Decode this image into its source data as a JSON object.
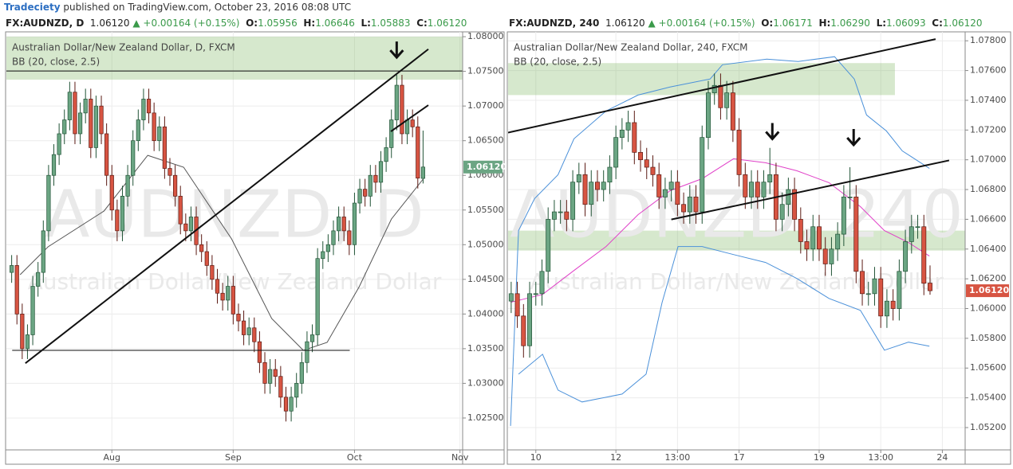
{
  "top": {
    "author": "Tradeciety",
    "text": "published on TradingView.com, October 23, 2016 08:08 UTC"
  },
  "chart_data": [
    {
      "type": "candlestick",
      "header": {
        "symbol": "FX:AUDNZD, D",
        "last": "1.06120",
        "change": "▲ +0.00164 (+0.15%)",
        "ohlc": [
          {
            "label": "O:",
            "value": "1.05956"
          },
          {
            "label": "H:",
            "value": "1.06646"
          },
          {
            "label": "L:",
            "value": "1.05883"
          },
          {
            "label": "C:",
            "value": "1.06120"
          }
        ]
      },
      "legend": [
        "Australian Dollar/New Zealand Dollar, D, FXCM",
        "BB (20, close, 2.5)"
      ],
      "watermark": [
        "AUDNZD, D",
        "Australian Dollar/New Zealand Dollar"
      ],
      "price_label": "1.06120",
      "up_color": "#6ba583",
      "down_color": "#d75442",
      "xlim": [
        -1,
        85.5
      ],
      "ylim": [
        1.0204,
        1.0807
      ],
      "xticks": [
        {
          "value": 19,
          "label": "Aug"
        },
        {
          "value": 42,
          "label": "Sep"
        },
        {
          "value": 65,
          "label": "Oct"
        },
        {
          "value": 85,
          "label": "Nov"
        }
      ],
      "yticks": [
        {
          "value": 1.025,
          "label": "1.02500"
        },
        {
          "value": 1.03,
          "label": "1.03000"
        },
        {
          "value": 1.035,
          "label": "1.03500"
        },
        {
          "value": 1.04,
          "label": "1.04000"
        },
        {
          "value": 1.045,
          "label": "1.04500"
        },
        {
          "value": 1.05,
          "label": "1.05000"
        },
        {
          "value": 1.055,
          "label": "1.05500"
        },
        {
          "value": 1.06,
          "label": "1.06000"
        },
        {
          "value": 1.065,
          "label": "1.06500"
        },
        {
          "value": 1.07,
          "label": "1.07000"
        },
        {
          "value": 1.075,
          "label": "1.07500"
        },
        {
          "value": 1.08,
          "label": "1.08000"
        }
      ],
      "grid": true,
      "open": [
        1.046,
        1.047,
        1.04,
        1.035,
        1.037,
        1.044,
        1.046,
        1.052,
        1.06,
        1.063,
        1.066,
        1.068,
        1.072,
        1.066,
        1.069,
        1.071,
        1.064,
        1.07,
        1.066,
        1.06,
        1.055,
        1.052,
        1.057,
        1.06,
        1.065,
        1.068,
        1.071,
        1.069,
        1.065,
        1.067,
        1.061,
        1.06,
        1.057,
        1.053,
        1.052,
        1.054,
        1.05,
        1.049,
        1.047,
        1.045,
        1.043,
        1.042,
        1.044,
        1.04,
        1.039,
        1.037,
        1.038,
        1.036,
        1.033,
        1.03,
        1.032,
        1.031,
        1.028,
        1.026,
        1.028,
        1.03,
        1.033,
        1.036,
        1.037,
        1.048,
        1.049,
        1.05,
        1.052,
        1.054,
        1.052,
        1.05,
        1.056,
        1.058,
        1.057,
        1.06,
        1.059,
        1.062,
        1.064,
        1.068,
        1.073,
        1.066,
        1.068,
        1.067,
        1.05956
      ],
      "high": [
        1.0485,
        1.0485,
        1.0415,
        1.0385,
        1.0455,
        1.0475,
        1.0535,
        1.0615,
        1.0645,
        1.0675,
        1.0695,
        1.0735,
        1.0735,
        1.0705,
        1.0725,
        1.0725,
        1.0715,
        1.0715,
        1.0675,
        1.0615,
        1.0565,
        1.0585,
        1.0615,
        1.0665,
        1.0695,
        1.0725,
        1.0725,
        1.0705,
        1.0685,
        1.0685,
        1.0625,
        1.0615,
        1.0585,
        1.0545,
        1.0555,
        1.0555,
        1.0515,
        1.0505,
        1.0485,
        1.0465,
        1.0445,
        1.0455,
        1.0455,
        1.0415,
        1.0405,
        1.0395,
        1.0395,
        1.0375,
        1.0345,
        1.0335,
        1.0335,
        1.0325,
        1.0295,
        1.0295,
        1.0315,
        1.0345,
        1.0375,
        1.0385,
        1.0495,
        1.0505,
        1.0515,
        1.0535,
        1.0555,
        1.0555,
        1.0535,
        1.0575,
        1.0595,
        1.0595,
        1.0615,
        1.0615,
        1.0635,
        1.0655,
        1.0695,
        1.0745,
        1.0745,
        1.0695,
        1.0695,
        1.0685,
        1.06646
      ],
      "low": [
        1.0445,
        1.0385,
        1.0335,
        1.0335,
        1.0355,
        1.0425,
        1.0445,
        1.0505,
        1.0585,
        1.0615,
        1.0645,
        1.0665,
        1.0645,
        1.0645,
        1.0675,
        1.0625,
        1.0625,
        1.0645,
        1.0585,
        1.0535,
        1.0505,
        1.0505,
        1.0555,
        1.0585,
        1.0635,
        1.0665,
        1.0675,
        1.0635,
        1.0635,
        1.0595,
        1.0585,
        1.0555,
        1.0515,
        1.0505,
        1.0505,
        1.0485,
        1.0475,
        1.0455,
        1.0435,
        1.0415,
        1.0405,
        1.0405,
        1.0385,
        1.0375,
        1.0355,
        1.0355,
        1.0345,
        1.0315,
        1.0285,
        1.0285,
        1.0295,
        1.0265,
        1.0245,
        1.0245,
        1.0265,
        1.0285,
        1.0315,
        1.0345,
        1.0355,
        1.0465,
        1.0475,
        1.0485,
        1.0505,
        1.0505,
        1.0485,
        1.0485,
        1.0545,
        1.0555,
        1.0555,
        1.0575,
        1.0575,
        1.0605,
        1.0625,
        1.0665,
        1.0645,
        1.0645,
        1.0655,
        1.0581,
        1.05883
      ],
      "close": [
        1.047,
        1.04,
        1.035,
        1.037,
        1.044,
        1.046,
        1.052,
        1.06,
        1.063,
        1.066,
        1.068,
        1.072,
        1.066,
        1.069,
        1.071,
        1.064,
        1.07,
        1.066,
        1.06,
        1.055,
        1.052,
        1.057,
        1.06,
        1.065,
        1.068,
        1.071,
        1.069,
        1.065,
        1.067,
        1.061,
        1.06,
        1.057,
        1.053,
        1.052,
        1.054,
        1.05,
        1.049,
        1.047,
        1.045,
        1.043,
        1.042,
        1.044,
        1.04,
        1.039,
        1.037,
        1.038,
        1.036,
        1.033,
        1.03,
        1.032,
        1.031,
        1.028,
        1.026,
        1.028,
        1.03,
        1.033,
        1.036,
        1.037,
        1.048,
        1.049,
        1.05,
        1.052,
        1.054,
        1.052,
        1.05,
        1.056,
        1.058,
        1.057,
        1.06,
        1.059,
        1.062,
        1.064,
        1.068,
        1.073,
        1.066,
        1.068,
        1.067,
        1.0596,
        1.0612
      ],
      "bands": [
        {
          "color": "#555555",
          "x": [
            1.6,
            6.9,
            17.5,
            25.8,
            32.6,
            41.7,
            49.3,
            55.3,
            59.8,
            65.9,
            72,
            78
          ],
          "values": [
            1.04567,
            1.04969,
            1.05485,
            1.06289,
            1.06117,
            1.05083,
            1.03935,
            1.03476,
            1.03591,
            1.04394,
            1.0537,
            1.05945
          ]
        }
      ],
      "lines": [
        {
          "x": [
            2.6,
            79
          ],
          "y": [
            1.0329,
            1.0782
          ]
        },
        {
          "x": [
            71.9,
            79
          ],
          "y": [
            1.06634,
            1.07013
          ]
        },
        {
          "x": [
            -1,
            85.5
          ],
          "y": [
            1.07506,
            1.07506
          ]
        },
        {
          "x": [
            0.1,
            64.1
          ],
          "y": [
            1.03476,
            1.03476
          ]
        }
      ],
      "zones": [
        {
          "x": [
            -1,
            85.5
          ],
          "y": [
            1.0738,
            1.08
          ]
        }
      ],
      "arrows": [
        {
          "x": 73,
          "y": 1.07701
        }
      ]
    },
    {
      "type": "candlestick",
      "header": {
        "symbol": "FX:AUDNZD, 240",
        "last": "1.06120",
        "change": "▲ +0.00164 (+0.15%)",
        "ohlc": [
          {
            "label": "O:",
            "value": "1.06171"
          },
          {
            "label": "H:",
            "value": "1.06290"
          },
          {
            "label": "L:",
            "value": "1.06093"
          },
          {
            "label": "C:",
            "value": "1.06120"
          }
        ]
      },
      "legend": [
        "Australian Dollar/New Zealand Dollar, 240, FXCM",
        "BB (20, close, 2.5)"
      ],
      "watermark": [
        "AUDNZD, 240",
        "Australian Dollar/New Zealand Dollar"
      ],
      "price_label": "1.06120",
      "up_color": "#6ba583",
      "down_color": "#d75442",
      "xlim": [
        -0.5,
        73.7
      ],
      "ylim": [
        1.0505,
        1.0786
      ],
      "xticks": [
        {
          "value": 4,
          "label": "10"
        },
        {
          "value": 17,
          "label": "12"
        },
        {
          "value": 27,
          "label": "13:00"
        },
        {
          "value": 37,
          "label": "17"
        },
        {
          "value": 50,
          "label": "19"
        },
        {
          "value": 60,
          "label": "13:00"
        },
        {
          "value": 70,
          "label": "24"
        }
      ],
      "yticks": [
        {
          "value": 1.052,
          "label": "1.05200"
        },
        {
          "value": 1.054,
          "label": "1.05400"
        },
        {
          "value": 1.056,
          "label": "1.05600"
        },
        {
          "value": 1.058,
          "label": "1.05800"
        },
        {
          "value": 1.06,
          "label": "1.06000"
        },
        {
          "value": 1.062,
          "label": "1.06200"
        },
        {
          "value": 1.064,
          "label": "1.06400"
        },
        {
          "value": 1.066,
          "label": "1.06600"
        },
        {
          "value": 1.068,
          "label": "1.06800"
        },
        {
          "value": 1.07,
          "label": "1.07000"
        },
        {
          "value": 1.072,
          "label": "1.07200"
        },
        {
          "value": 1.074,
          "label": "1.07400"
        },
        {
          "value": 1.076,
          "label": "1.07600"
        },
        {
          "value": 1.078,
          "label": "1.07800"
        }
      ],
      "grid": true,
      "open": [
        1.0605,
        1.061,
        1.0595,
        1.0575,
        1.061,
        1.061,
        1.0625,
        1.066,
        1.0665,
        1.0665,
        1.066,
        1.0685,
        1.069,
        1.067,
        1.0685,
        1.068,
        1.0685,
        1.0695,
        1.0715,
        1.072,
        1.0725,
        1.0705,
        1.07,
        1.0695,
        1.069,
        1.0675,
        1.068,
        1.0685,
        1.067,
        1.0665,
        1.0675,
        1.0665,
        1.0715,
        1.0745,
        1.075,
        1.0735,
        1.0745,
        1.072,
        1.069,
        1.0675,
        1.0685,
        1.0675,
        1.0685,
        1.069,
        1.066,
        1.067,
        1.068,
        1.066,
        1.0645,
        1.064,
        1.0655,
        1.064,
        1.063,
        1.064,
        1.065,
        1.0675,
        1.0675,
        1.0625,
        1.061,
        1.061,
        1.062,
        1.0595,
        1.0605,
        1.06,
        1.0625,
        1.0645,
        1.0655,
        1.0655,
        1.06171
      ],
      "high": [
        1.0618,
        1.0618,
        1.0603,
        1.0618,
        1.0618,
        1.0633,
        1.0668,
        1.0673,
        1.0673,
        1.0673,
        1.0693,
        1.0698,
        1.0698,
        1.0693,
        1.0693,
        1.0693,
        1.0703,
        1.0723,
        1.0728,
        1.0733,
        1.0733,
        1.0713,
        1.0708,
        1.0703,
        1.0698,
        1.0688,
        1.0693,
        1.0693,
        1.0678,
        1.0683,
        1.0683,
        1.0723,
        1.0753,
        1.0758,
        1.0758,
        1.0753,
        1.0753,
        1.0728,
        1.0698,
        1.0693,
        1.0693,
        1.0693,
        1.0708,
        1.0698,
        1.0678,
        1.0688,
        1.0688,
        1.0668,
        1.0653,
        1.0663,
        1.0663,
        1.0648,
        1.0648,
        1.0658,
        1.0683,
        1.0695,
        1.0683,
        1.0633,
        1.0618,
        1.0628,
        1.0628,
        1.0613,
        1.0613,
        1.0633,
        1.0653,
        1.0663,
        1.0663,
        1.0663,
        1.0629
      ],
      "low": [
        1.0597,
        1.0587,
        1.0567,
        1.0567,
        1.0602,
        1.0602,
        1.0617,
        1.0652,
        1.0657,
        1.0652,
        1.0652,
        1.0677,
        1.0662,
        1.0662,
        1.0672,
        1.0672,
        1.0677,
        1.0687,
        1.0707,
        1.0712,
        1.0697,
        1.0692,
        1.0687,
        1.0682,
        1.0667,
        1.0667,
        1.0672,
        1.0662,
        1.0657,
        1.0657,
        1.0657,
        1.0657,
        1.0707,
        1.0737,
        1.0727,
        1.0727,
        1.0712,
        1.0682,
        1.0667,
        1.0667,
        1.0667,
        1.0667,
        1.0677,
        1.0652,
        1.0652,
        1.0662,
        1.0652,
        1.0637,
        1.0632,
        1.0632,
        1.0632,
        1.0622,
        1.0622,
        1.0632,
        1.0642,
        1.0667,
        1.0617,
        1.0602,
        1.0602,
        1.0602,
        1.0587,
        1.0587,
        1.0592,
        1.0592,
        1.0617,
        1.0637,
        1.0647,
        1.0609,
        1.06093
      ],
      "close": [
        1.061,
        1.0595,
        1.0575,
        1.061,
        1.061,
        1.0625,
        1.066,
        1.0665,
        1.0665,
        1.066,
        1.0685,
        1.069,
        1.067,
        1.0685,
        1.068,
        1.0685,
        1.0695,
        1.0715,
        1.072,
        1.0725,
        1.0705,
        1.07,
        1.0695,
        1.069,
        1.0675,
        1.068,
        1.0685,
        1.067,
        1.0665,
        1.0675,
        1.0665,
        1.0715,
        1.0745,
        1.075,
        1.0735,
        1.0745,
        1.072,
        1.069,
        1.0675,
        1.0685,
        1.0675,
        1.0685,
        1.069,
        1.066,
        1.067,
        1.068,
        1.066,
        1.0645,
        1.064,
        1.0655,
        1.064,
        1.063,
        1.064,
        1.065,
        1.0675,
        1.0675,
        1.0625,
        1.061,
        1.061,
        1.062,
        1.0595,
        1.0605,
        1.06,
        1.0625,
        1.0645,
        1.0655,
        1.0655,
        1.0617,
        1.0612
      ],
      "bands": [
        {
          "color": "#4a90d9",
          "x": [
            -0.1,
            1.2,
            3.8,
            7.6,
            10.2,
            15.4,
            20.6,
            25.8,
            32.3,
            34.3,
            41.5,
            46.6,
            52.5,
            55.7,
            57.7,
            60.9,
            63.5,
            67.9
          ],
          "values": [
            1.05211,
            1.06524,
            1.06739,
            1.06899,
            1.07141,
            1.07328,
            1.07435,
            1.07489,
            1.07543,
            1.07639,
            1.07677,
            1.07661,
            1.07693,
            1.07543,
            1.07301,
            1.07194,
            1.0706,
            1.06942
          ]
        },
        {
          "color": "#e040c8",
          "x": [
            -0.1,
            5.1,
            10.2,
            15.4,
            20.6,
            25.8,
            31,
            36.1,
            41.3,
            46.4,
            51.6,
            56.7,
            60.6,
            64.5,
            67.9
          ],
          "values": [
            1.06042,
            1.06095,
            1.06256,
            1.06417,
            1.06631,
            1.06792,
            1.06873,
            1.07007,
            1.0698,
            1.06926,
            1.06846,
            1.06685,
            1.06524,
            1.06444,
            1.06353
          ]
        },
        {
          "color": "#4a90d9",
          "x": [
            1.2,
            5.1,
            7.6,
            11.5,
            18,
            21.9,
            24.5,
            27.1,
            31,
            36.1,
            41.3,
            46.4,
            51.6,
            56.7,
            60.6,
            64.5,
            67.9
          ],
          "values": [
            1.05559,
            1.05693,
            1.05452,
            1.05372,
            1.05425,
            1.05559,
            1.06042,
            1.06417,
            1.06417,
            1.06363,
            1.0631,
            1.06202,
            1.06068,
            1.05988,
            1.0572,
            1.05774,
            1.05747
          ]
        }
      ],
      "lines": [
        {
          "x": [
            -0.5,
            68.9
          ],
          "y": [
            1.07183,
            1.07811
          ]
        },
        {
          "x": [
            26,
            71.1
          ],
          "y": [
            1.06599,
            1.06996
          ]
        }
      ],
      "zones": [
        {
          "x": [
            -0.5,
            62.3
          ],
          "y": [
            1.07435,
            1.0765
          ]
        },
        {
          "x": [
            -0.5,
            73.7
          ],
          "y": [
            1.0639,
            1.06524
          ]
        }
      ],
      "arrows": [
        {
          "x": 42.4,
          "y": 1.0714
        },
        {
          "x": 55.6,
          "y": 1.071
        }
      ]
    }
  ]
}
